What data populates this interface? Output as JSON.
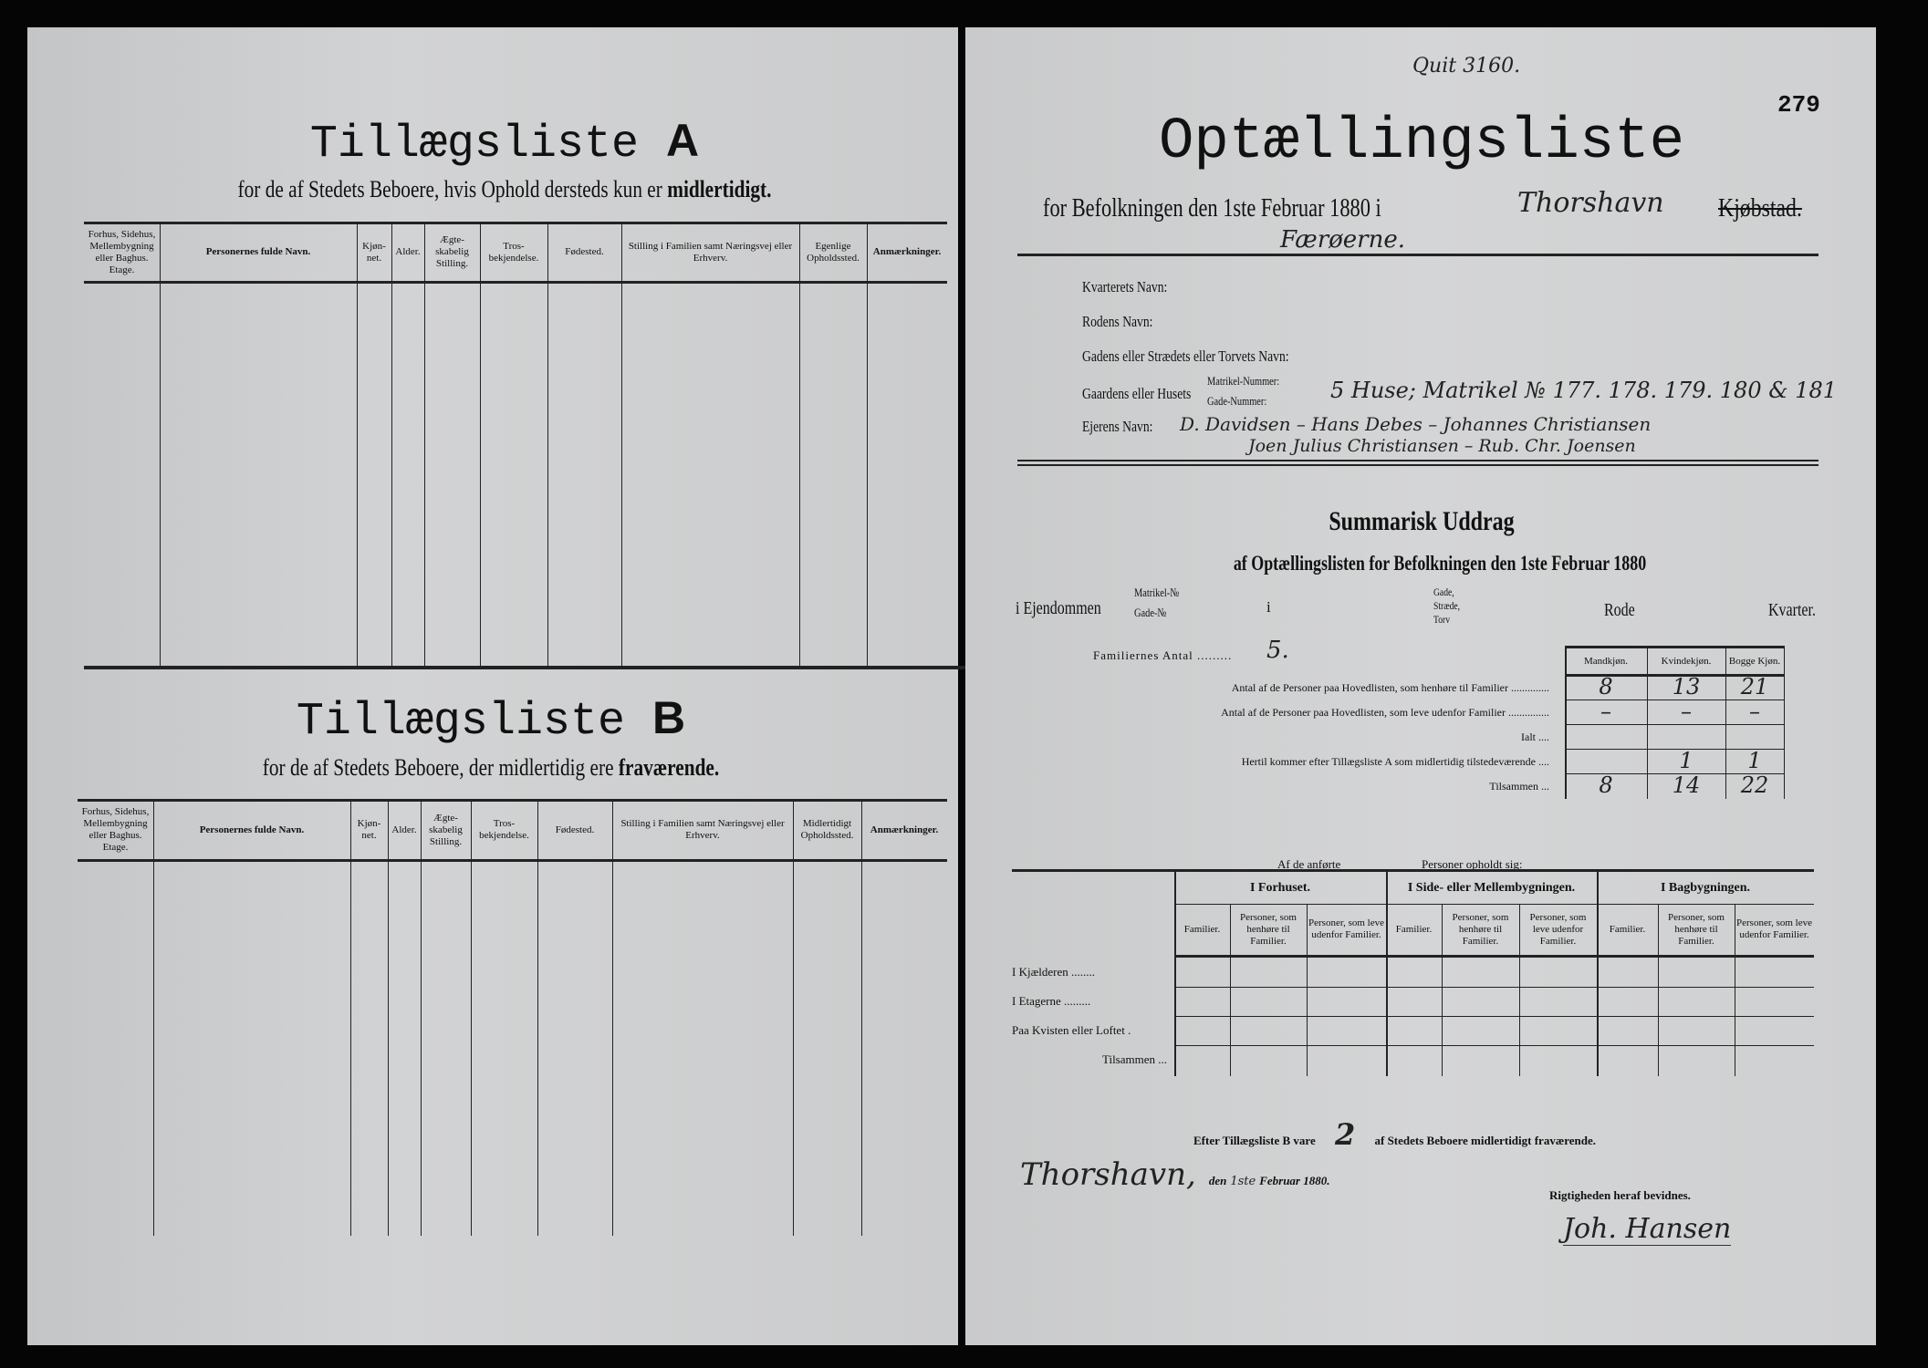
{
  "left": {
    "list_a": {
      "title": "Tillægsliste",
      "letter": "A",
      "subtitle": "for de af Stedets Beboere, hvis Ophold dersteds kun er",
      "subtitle_bold": "midlertidigt.",
      "columns": [
        "Forhus, Sidehus, Mellembygning eller Baghus. Etage.",
        "Personernes fulde Navn.",
        "Kjøn-net.",
        "Alder.",
        "Ægte-skabelig Stilling.",
        "Tros-bekjendelse.",
        "Fødested.",
        "Stilling i Familien samt Næringsvej eller Erhverv.",
        "Egenlige Opholdssted.",
        "Anmærkninger."
      ]
    },
    "list_b": {
      "title": "Tillægsliste",
      "letter": "B",
      "subtitle": "for de af Stedets Beboere, der midlertidig ere",
      "subtitle_bold": "fraværende.",
      "columns": [
        "Forhus, Sidehus, Mellembygning eller Baghus. Etage.",
        "Personernes fulde Navn.",
        "Kjøn-net.",
        "Alder.",
        "Ægte-skabelig Stilling.",
        "Tros-bekjendelse.",
        "Fødested.",
        "Stilling i Familien samt Næringsvej eller Erhverv.",
        "Midlertidigt Opholdssted.",
        "Anmærkninger."
      ]
    }
  },
  "right": {
    "archive_note": "Quit 3160.",
    "page_number": "279",
    "title": "Optællingsliste",
    "subtitle": "for Befolkningen den 1ste Februar 1880 i",
    "town_handwritten": "Thorshavn",
    "struck_word": "Kjøbstad.",
    "region_handwritten": "Færøerne.",
    "fields": {
      "kvarter_label": "Kvarterets Navn:",
      "rode_label": "Rodens Navn:",
      "gade_label": "Gadens eller Strædets eller Torvets Navn:",
      "gaard_label": "Gaardens eller Husets",
      "matrikel_label": "Matrikel-Nummer:",
      "gadenr_label": "Gade-Nummer:",
      "gaard_value": "5 Huse; Matrikel № 177. 178. 179. 180 & 181",
      "ejer_label": "Ejerens Navn:",
      "ejer_value_1": "D. Davidsen – Hans Debes – Johannes Christiansen",
      "ejer_value_2": "Joen Julius Christiansen – Rub. Chr. Joensen"
    },
    "summary": {
      "title": "Summarisk Uddrag",
      "subtitle": "af Optællingslisten for Befolkningen den 1ste Februar 1880",
      "ejendom_label": "i Ejendommen",
      "matrikel": "Matrikel-№",
      "gadenr": "Gade-№",
      "i": "i",
      "gade_options": "Gade, Stræde, Torv",
      "rode": "Rode",
      "kvarter": "Kvarter.",
      "families_label": "Familiernes Antal .........",
      "families_value": "5.",
      "headers": [
        "Mandkjøn.",
        "Kvindekjøn.",
        "Bogge Kjøn."
      ],
      "rows": [
        {
          "label": "Antal af de Personer paa Hovedlisten, som henhøre til Familier ..............",
          "values": [
            "8",
            "13",
            "21"
          ]
        },
        {
          "label": "Antal af de Personer paa Hovedlisten, som leve udenfor Familier ...............",
          "values": [
            "–",
            "–",
            "–"
          ]
        },
        {
          "label": "Ialt ....",
          "values": [
            "",
            "",
            ""
          ]
        },
        {
          "label": "Hertil kommer efter Tillægsliste A som midlertidig tilstedeværende ....",
          "values": [
            "",
            "1",
            "1"
          ]
        },
        {
          "label": "Tilsammen ...",
          "values": [
            "8",
            "14",
            "22"
          ]
        }
      ]
    },
    "residence": {
      "intro_1": "Af de anførte",
      "intro_2": "Personer opholdt sig:",
      "groups": [
        "I Forhuset.",
        "I Side- eller Mellembygningen.",
        "I Bagbygningen."
      ],
      "subcols": [
        "Familier.",
        "Personer, som henhøre til Familier.",
        "Personer, som leve udenfor Familier."
      ],
      "rows": [
        "I Kjælderen ........",
        "I Etagerne .........",
        "Paa Kvisten eller Loftet .",
        "Tilsammen ..."
      ]
    },
    "absent_pre": "Efter Tillægsliste B vare",
    "absent_value": "2",
    "absent_post": "af Stedets Beboere midlertidigt fraværende.",
    "place_handwritten": "Thorshavn,",
    "date_pre": "den",
    "date_hand": "1ste",
    "date_post": "Februar 1880.",
    "certify": "Rigtigheden heraf bevidnes.",
    "signature": "Joh. Hansen"
  }
}
